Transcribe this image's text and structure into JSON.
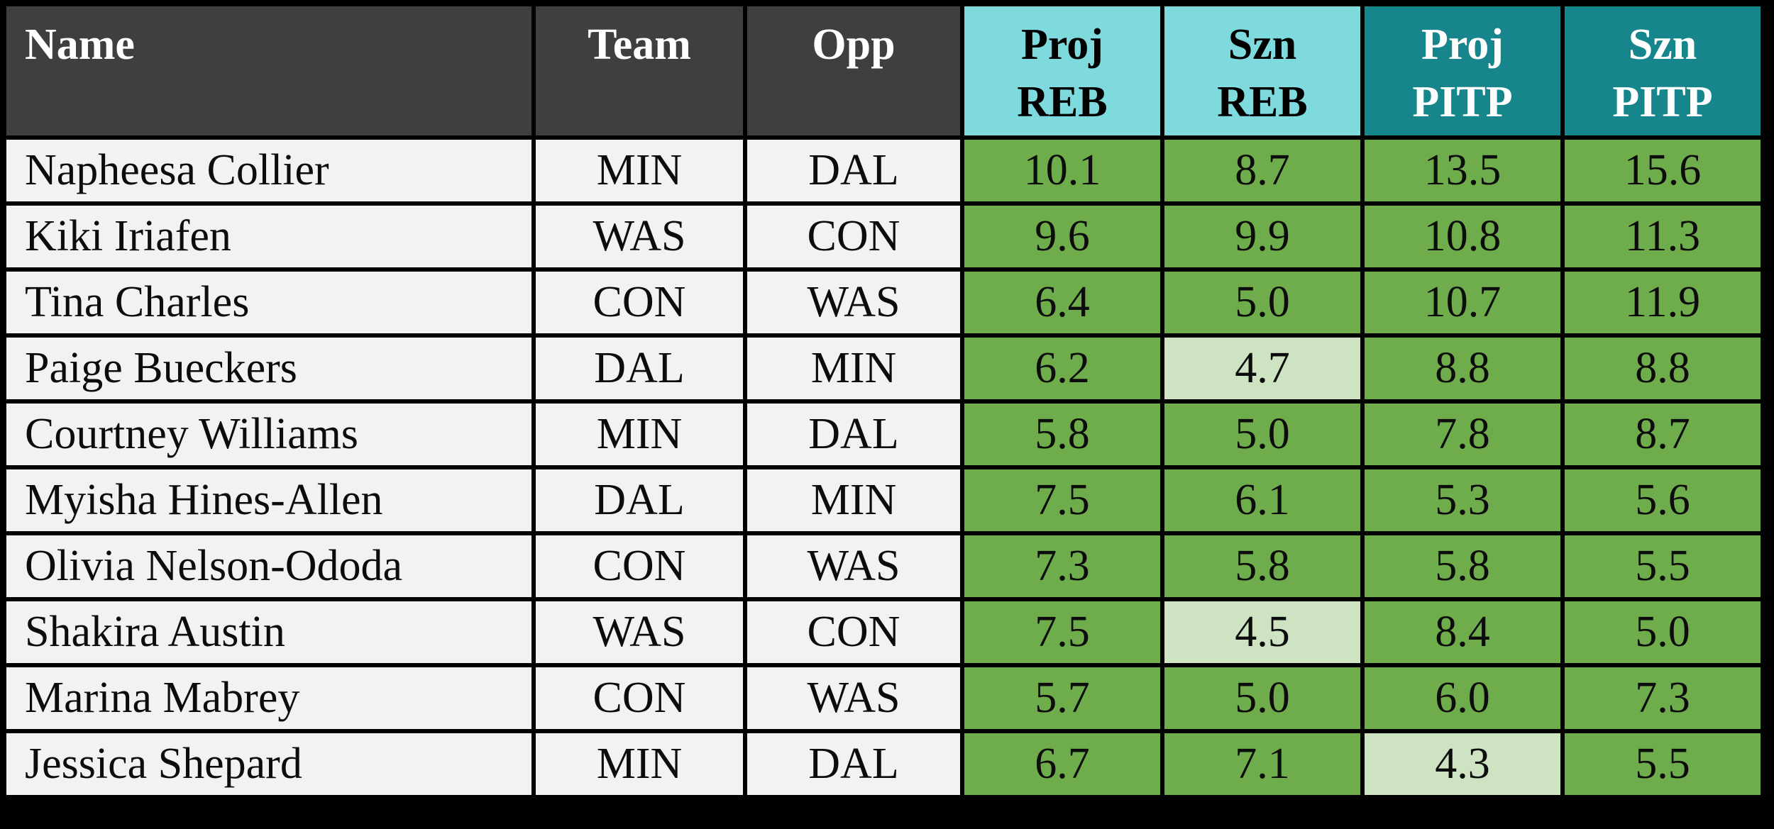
{
  "colors": {
    "page_background": "#000000",
    "header_background": "#3f3f3f",
    "header_text": "#ffffff",
    "row_background": "#f2f2f2",
    "reb_header_background": "#7edadd",
    "reb_header_text": "#000000",
    "pitp_header_background": "#17868c",
    "pitp_header_text": "#ffffff",
    "stat_cell_green": "#6fad4c",
    "stat_cell_light_green": "#cde3c1",
    "grid_border": "#000000"
  },
  "chart_data": {
    "type": "table",
    "columns": [
      "Name",
      "Team",
      "Opp",
      "Proj REB",
      "Szn REB",
      "Proj PITP",
      "Szn PITP"
    ],
    "headers": {
      "name": "Name",
      "team": "Team",
      "opp": "Opp",
      "proj_reb": "Proj\nREB",
      "szn_reb": "Szn\nREB",
      "proj_pitp": "Proj\nPITP",
      "szn_pitp": "Szn\nPITP"
    },
    "rows": [
      {
        "name": "Napheesa Collier",
        "team": "MIN",
        "opp": "DAL",
        "stats": [
          {
            "value": "10.1",
            "tone": "green"
          },
          {
            "value": "8.7",
            "tone": "green"
          },
          {
            "value": "13.5",
            "tone": "green"
          },
          {
            "value": "15.6",
            "tone": "green"
          }
        ]
      },
      {
        "name": "Kiki Iriafen",
        "team": "WAS",
        "opp": "CON",
        "stats": [
          {
            "value": "9.6",
            "tone": "green"
          },
          {
            "value": "9.9",
            "tone": "green"
          },
          {
            "value": "10.8",
            "tone": "green"
          },
          {
            "value": "11.3",
            "tone": "green"
          }
        ]
      },
      {
        "name": "Tina Charles",
        "team": "CON",
        "opp": "WAS",
        "stats": [
          {
            "value": "6.4",
            "tone": "green"
          },
          {
            "value": "5.0",
            "tone": "green"
          },
          {
            "value": "10.7",
            "tone": "green"
          },
          {
            "value": "11.9",
            "tone": "green"
          }
        ]
      },
      {
        "name": "Paige Bueckers",
        "team": "DAL",
        "opp": "MIN",
        "stats": [
          {
            "value": "6.2",
            "tone": "green"
          },
          {
            "value": "4.7",
            "tone": "light"
          },
          {
            "value": "8.8",
            "tone": "green"
          },
          {
            "value": "8.8",
            "tone": "green"
          }
        ]
      },
      {
        "name": "Courtney Williams",
        "team": "MIN",
        "opp": "DAL",
        "stats": [
          {
            "value": "5.8",
            "tone": "green"
          },
          {
            "value": "5.0",
            "tone": "green"
          },
          {
            "value": "7.8",
            "tone": "green"
          },
          {
            "value": "8.7",
            "tone": "green"
          }
        ]
      },
      {
        "name": "Myisha Hines-Allen",
        "team": "DAL",
        "opp": "MIN",
        "stats": [
          {
            "value": "7.5",
            "tone": "green"
          },
          {
            "value": "6.1",
            "tone": "green"
          },
          {
            "value": "5.3",
            "tone": "green"
          },
          {
            "value": "5.6",
            "tone": "green"
          }
        ]
      },
      {
        "name": "Olivia Nelson-Ododa",
        "team": "CON",
        "opp": "WAS",
        "stats": [
          {
            "value": "7.3",
            "tone": "green"
          },
          {
            "value": "5.8",
            "tone": "green"
          },
          {
            "value": "5.8",
            "tone": "green"
          },
          {
            "value": "5.5",
            "tone": "green"
          }
        ]
      },
      {
        "name": "Shakira Austin",
        "team": "WAS",
        "opp": "CON",
        "stats": [
          {
            "value": "7.5",
            "tone": "green"
          },
          {
            "value": "4.5",
            "tone": "light"
          },
          {
            "value": "8.4",
            "tone": "green"
          },
          {
            "value": "5.0",
            "tone": "green"
          }
        ]
      },
      {
        "name": "Marina Mabrey",
        "team": "CON",
        "opp": "WAS",
        "stats": [
          {
            "value": "5.7",
            "tone": "green"
          },
          {
            "value": "5.0",
            "tone": "green"
          },
          {
            "value": "6.0",
            "tone": "green"
          },
          {
            "value": "7.3",
            "tone": "green"
          }
        ]
      },
      {
        "name": "Jessica Shepard",
        "team": "MIN",
        "opp": "DAL",
        "stats": [
          {
            "value": "6.7",
            "tone": "green"
          },
          {
            "value": "7.1",
            "tone": "green"
          },
          {
            "value": "4.3",
            "tone": "light"
          },
          {
            "value": "5.5",
            "tone": "green"
          }
        ]
      }
    ]
  }
}
